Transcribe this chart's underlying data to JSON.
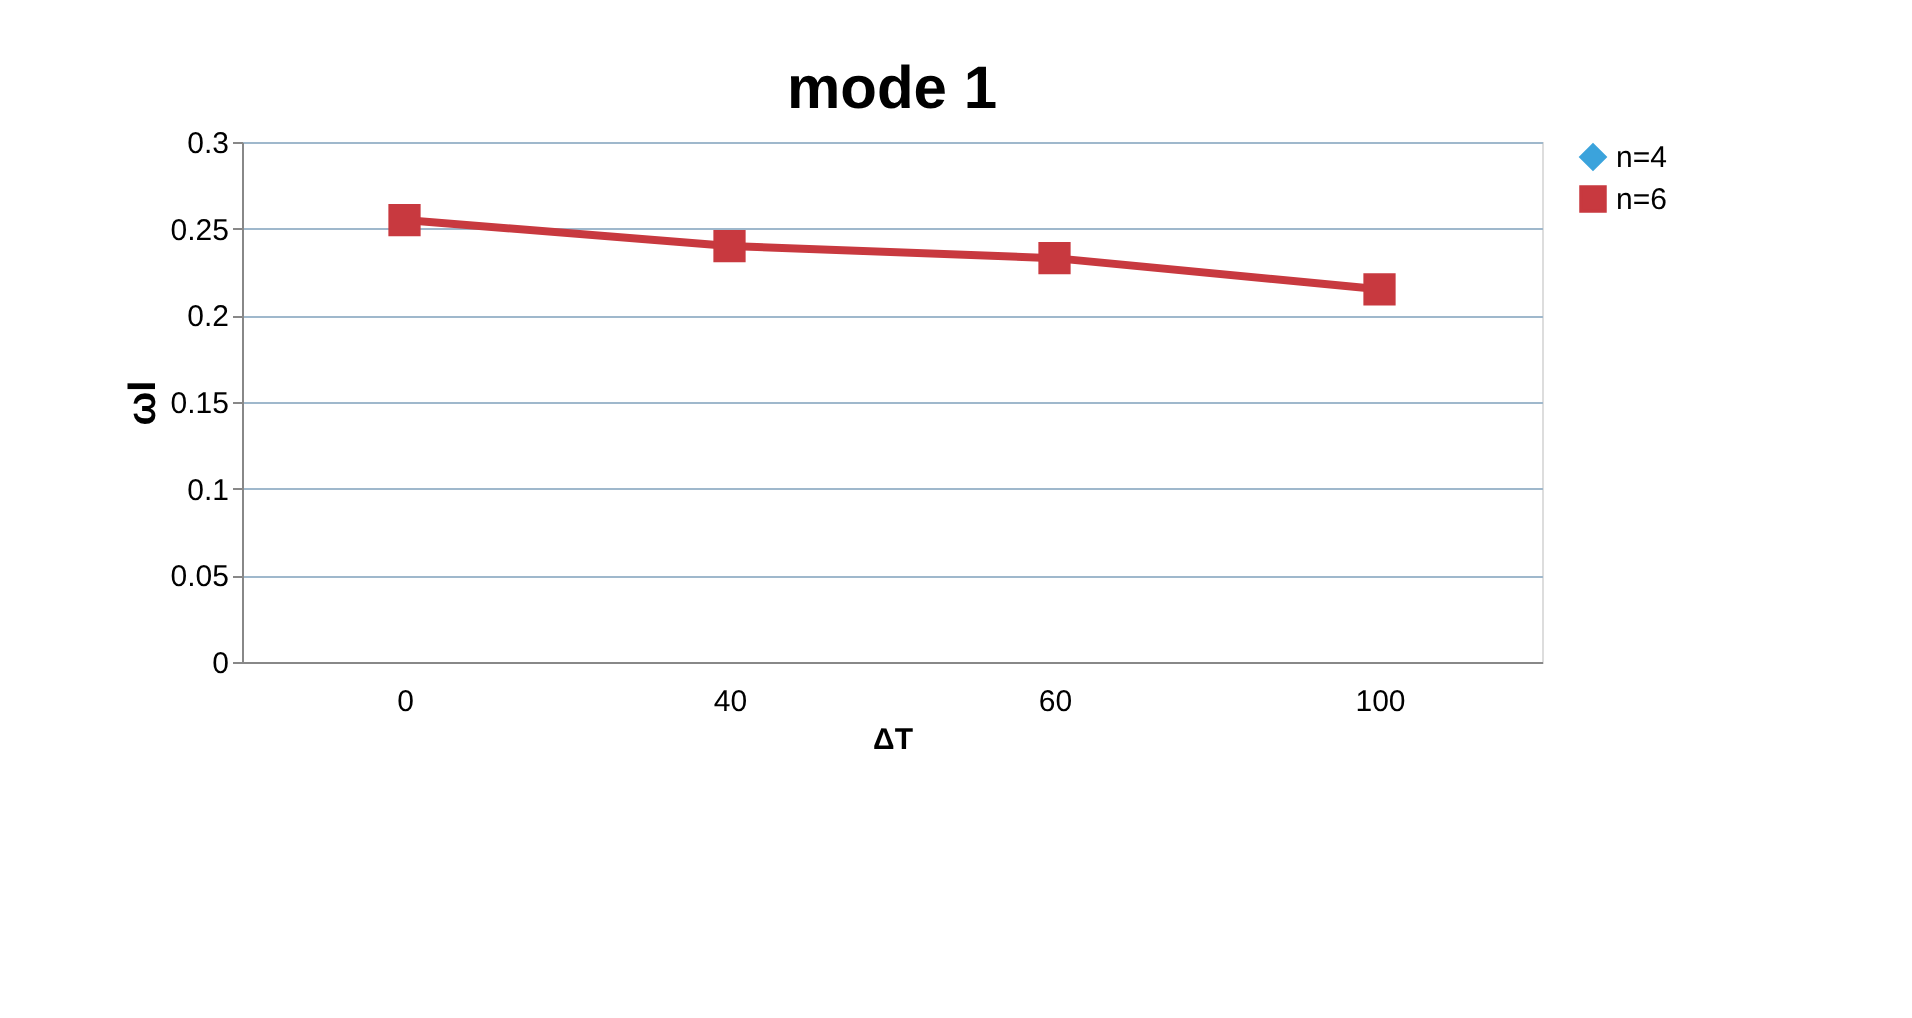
{
  "chart_data": {
    "type": "line",
    "title": "mode 1",
    "xlabel": "ΔT",
    "ylabel": "ωI",
    "categories": [
      "0",
      "40",
      "60",
      "100"
    ],
    "series": [
      {
        "name": "n=4",
        "color": "#3ba3dc",
        "marker": "diamond",
        "values": [
          null,
          null,
          null,
          null
        ]
      },
      {
        "name": "n=6",
        "color": "#c8393f",
        "marker": "square",
        "values": [
          0.255,
          0.24,
          0.233,
          0.215
        ]
      }
    ],
    "ylim": [
      0,
      0.3
    ],
    "yticks": [
      0,
      0.05,
      0.1,
      0.15,
      0.2,
      0.25,
      0.3
    ],
    "grid": "y",
    "legend": "right"
  }
}
